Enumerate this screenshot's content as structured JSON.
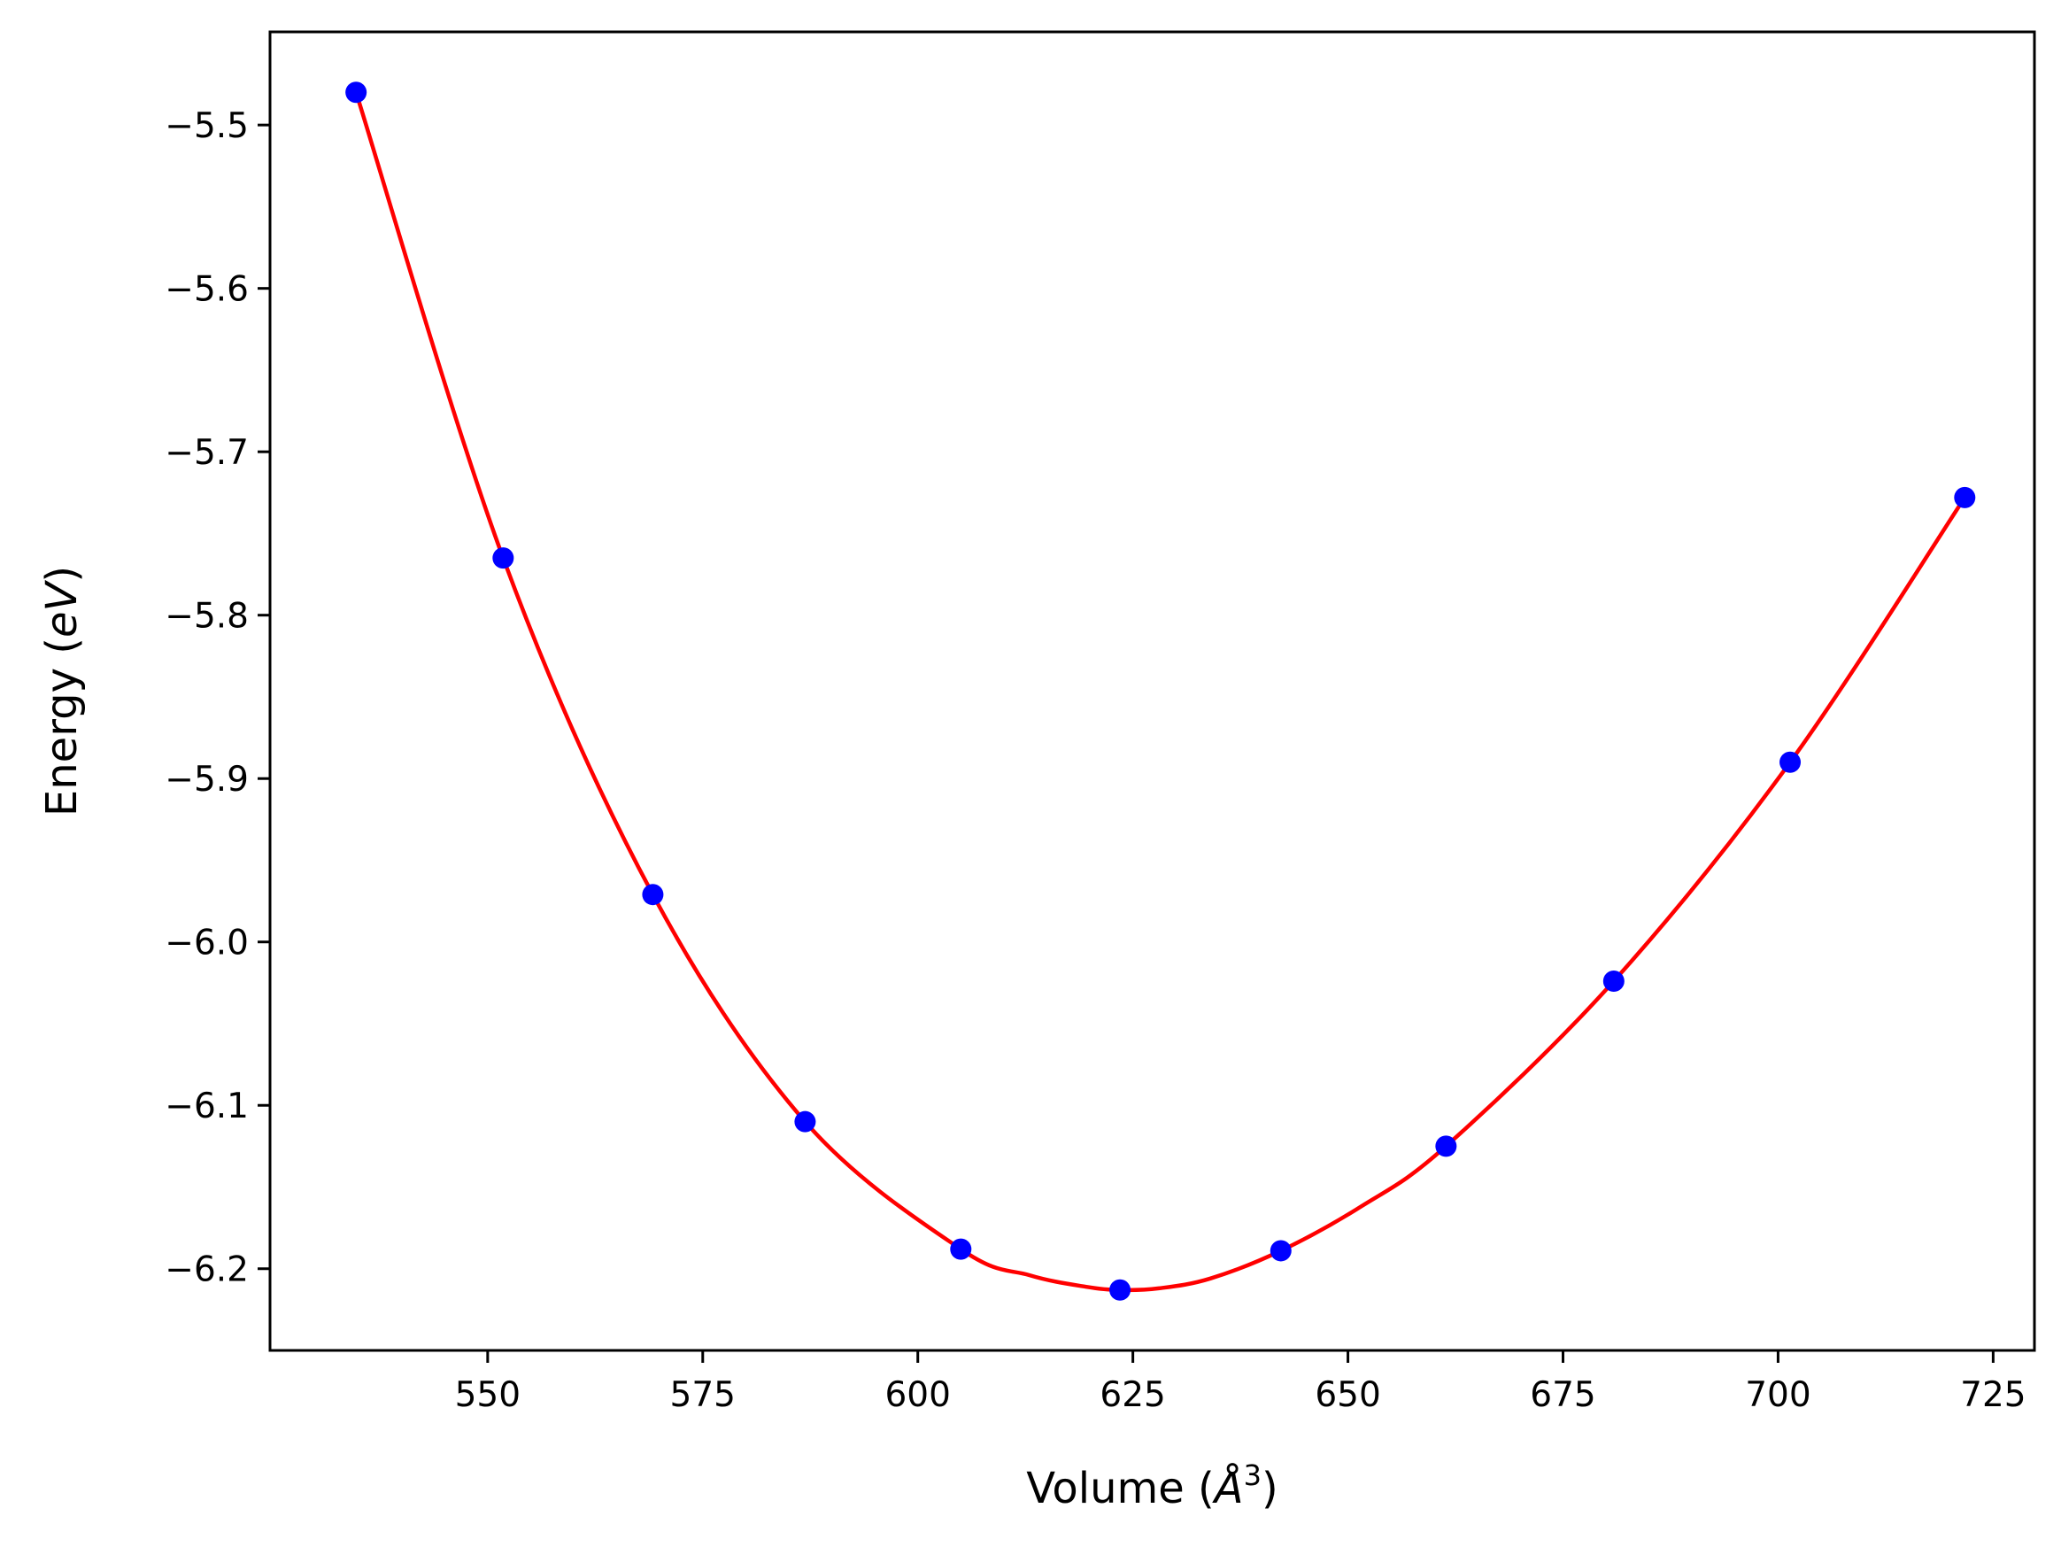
{
  "chart_data": {
    "type": "scatter",
    "xlabel": "Volume (Å³)",
    "ylabel": "Energy (eV)",
    "xlabel_parts": {
      "prefix": "Volume (",
      "var": "Å",
      "sup": "3",
      "suffix": ")"
    },
    "ylabel_parts": {
      "prefix": "Energy (",
      "var": "eV",
      "suffix": ")"
    },
    "xlim": [
      524.7,
      729.8
    ],
    "ylim": [
      -6.25,
      -5.443
    ],
    "xticks": [
      550,
      575,
      600,
      625,
      650,
      675,
      700,
      725
    ],
    "yticks": [
      -5.5,
      -5.6,
      -5.7,
      -5.8,
      -5.9,
      -6.0,
      -6.1,
      -6.2
    ],
    "xtick_labels": [
      "550",
      "575",
      "600",
      "625",
      "650",
      "675",
      "700",
      "725"
    ],
    "ytick_labels": [
      "−5.5",
      "−5.6",
      "−5.7",
      "−5.8",
      "−5.9",
      "−6.0",
      "−6.1",
      "−6.2"
    ],
    "grid": false,
    "series": [
      {
        "kind": "points",
        "color": "#0000ff",
        "x": [
          534.7,
          551.8,
          569.2,
          586.9,
          605.0,
          623.5,
          642.2,
          661.4,
          680.9,
          701.4,
          721.7
        ],
        "y": [
          -5.48,
          -5.765,
          -5.971,
          -6.11,
          -6.188,
          -6.213,
          -6.189,
          -6.125,
          -6.024,
          -5.89,
          -5.728
        ]
      },
      {
        "kind": "fit-curve",
        "color": "#ff0000",
        "x": [
          534.7,
          551.8,
          569.2,
          586.9,
          605.0,
          613.0,
          619.5,
          623.5,
          628.0,
          634.0,
          642.2,
          651.5,
          661.4,
          680.9,
          701.4,
          721.7
        ],
        "y": [
          -5.48,
          -5.765,
          -5.971,
          -6.11,
          -6.188,
          -6.204,
          -6.211,
          -6.213,
          -6.212,
          -6.206,
          -6.189,
          -6.162,
          -6.125,
          -6.024,
          -5.89,
          -5.728
        ]
      }
    ]
  }
}
